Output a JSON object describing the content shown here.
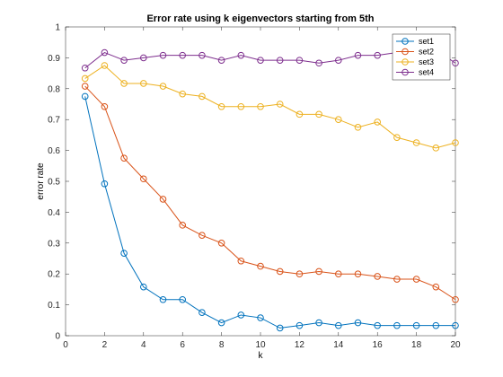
{
  "chart_data": {
    "type": "line",
    "title": "Error rate using k eigenvectors starting from 5th",
    "xlabel": "k",
    "ylabel": "error rate",
    "xlim": [
      0,
      20
    ],
    "ylim": [
      0,
      1
    ],
    "xticks": [
      0,
      2,
      4,
      6,
      8,
      10,
      12,
      14,
      16,
      18,
      20
    ],
    "yticks": [
      0,
      0.1,
      0.2,
      0.3,
      0.4,
      0.5,
      0.6,
      0.7,
      0.8,
      0.9,
      1
    ],
    "grid": false,
    "legend_position": "top-right",
    "x": [
      1,
      2,
      3,
      4,
      5,
      6,
      7,
      8,
      9,
      10,
      11,
      12,
      13,
      14,
      15,
      16,
      17,
      18,
      19,
      20
    ],
    "series": [
      {
        "name": "set1",
        "color": "#0072BD",
        "values": [
          0.775,
          0.492,
          0.267,
          0.158,
          0.117,
          0.117,
          0.075,
          0.042,
          0.067,
          0.058,
          0.025,
          0.033,
          0.042,
          0.033,
          0.042,
          0.033,
          0.033,
          0.033,
          0.033,
          0.033
        ]
      },
      {
        "name": "set2",
        "color": "#D95319",
        "values": [
          0.808,
          0.742,
          0.575,
          0.508,
          0.442,
          0.358,
          0.325,
          0.3,
          0.242,
          0.225,
          0.208,
          0.2,
          0.208,
          0.2,
          0.2,
          0.192,
          0.183,
          0.183,
          0.158,
          0.117
        ]
      },
      {
        "name": "set3",
        "color": "#EDB120",
        "values": [
          0.833,
          0.875,
          0.817,
          0.817,
          0.808,
          0.783,
          0.775,
          0.742,
          0.742,
          0.742,
          0.75,
          0.717,
          0.717,
          0.7,
          0.675,
          0.692,
          0.642,
          0.625,
          0.608,
          0.625
        ]
      },
      {
        "name": "set4",
        "color": "#7E2F8E",
        "values": [
          0.867,
          0.917,
          0.892,
          0.9,
          0.908,
          0.908,
          0.908,
          0.892,
          0.908,
          0.892,
          0.892,
          0.892,
          0.883,
          0.892,
          0.908,
          0.908,
          0.917,
          0.925,
          0.925,
          0.883
        ]
      }
    ]
  }
}
